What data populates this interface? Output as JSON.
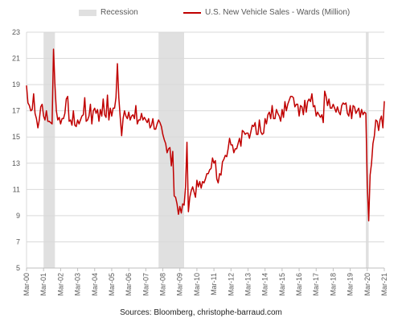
{
  "legend": {
    "recession_label": "Recession",
    "series_label": "U.S. New Vehicle Sales - Wards (Million)"
  },
  "source_text": "Sources: Bloomberg, christophe-barraud.com",
  "colors": {
    "series": "#c00000",
    "recession": "#e0e0e0",
    "grid": "#d9d9d9",
    "axis_text": "#595959"
  },
  "chart_data": {
    "type": "line",
    "ylim": [
      5,
      23
    ],
    "yticks": [
      5,
      7,
      9,
      11,
      13,
      15,
      17,
      19,
      21,
      23
    ],
    "xlim": [
      "2000-03",
      "2021-03"
    ],
    "xticks": [
      "Mar-00",
      "Mar-01",
      "Mar-02",
      "Mar-03",
      "Mar-04",
      "Mar-05",
      "Mar-06",
      "Mar-07",
      "Mar-08",
      "Mar-09",
      "Mar-10",
      "Mar-11",
      "Mar-12",
      "Mar-13",
      "Mar-14",
      "Mar-15",
      "Mar-16",
      "Mar-17",
      "Mar-18",
      "Mar-19",
      "Mar-20",
      "Mar-21"
    ],
    "grid": true,
    "legend_position": "top",
    "recessions": [
      [
        "2001-03",
        "2001-11"
      ],
      [
        "2007-12",
        "2009-06"
      ],
      [
        "2020-02",
        "2020-04"
      ]
    ],
    "series": [
      {
        "name": "U.S. New Vehicle Sales - Wards (Million)",
        "points": [
          [
            "2000-03",
            18.9
          ],
          [
            "2000-04",
            17.6
          ],
          [
            "2000-05",
            17.4
          ],
          [
            "2000-06",
            17.0
          ],
          [
            "2000-07",
            17.1
          ],
          [
            "2000-08",
            18.3
          ],
          [
            "2000-09",
            16.8
          ],
          [
            "2000-10",
            16.4
          ],
          [
            "2000-11",
            15.7
          ],
          [
            "2000-12",
            16.3
          ],
          [
            "2001-01",
            17.3
          ],
          [
            "2001-02",
            17.5
          ],
          [
            "2001-03",
            16.6
          ],
          [
            "2001-04",
            16.3
          ],
          [
            "2001-05",
            17.0
          ],
          [
            "2001-06",
            16.2
          ],
          [
            "2001-07",
            16.2
          ],
          [
            "2001-08",
            16.1
          ],
          [
            "2001-09",
            16.0
          ],
          [
            "2001-10",
            21.7
          ],
          [
            "2001-11",
            19.0
          ],
          [
            "2001-12",
            17.0
          ],
          [
            "2002-01",
            16.3
          ],
          [
            "2002-02",
            16.5
          ],
          [
            "2002-03",
            16.0
          ],
          [
            "2002-04",
            16.4
          ],
          [
            "2002-05",
            16.4
          ],
          [
            "2002-06",
            16.8
          ],
          [
            "2002-07",
            17.9
          ],
          [
            "2002-08",
            18.1
          ],
          [
            "2002-09",
            16.2
          ],
          [
            "2002-10",
            16.3
          ],
          [
            "2002-11",
            15.9
          ],
          [
            "2002-12",
            17.0
          ],
          [
            "2003-01",
            15.9
          ],
          [
            "2003-02",
            15.8
          ],
          [
            "2003-03",
            16.3
          ],
          [
            "2003-04",
            16.0
          ],
          [
            "2003-05",
            16.3
          ],
          [
            "2003-06",
            16.6
          ],
          [
            "2003-07",
            16.7
          ],
          [
            "2003-08",
            18.0
          ],
          [
            "2003-09",
            16.2
          ],
          [
            "2003-10",
            16.3
          ],
          [
            "2003-11",
            16.6
          ],
          [
            "2003-12",
            17.5
          ],
          [
            "2004-01",
            16.0
          ],
          [
            "2004-02",
            17.0
          ],
          [
            "2004-03",
            17.2
          ],
          [
            "2004-04",
            16.8
          ],
          [
            "2004-05",
            17.1
          ],
          [
            "2004-06",
            16.2
          ],
          [
            "2004-07",
            17.1
          ],
          [
            "2004-08",
            16.6
          ],
          [
            "2004-09",
            17.9
          ],
          [
            "2004-10",
            16.7
          ],
          [
            "2004-11",
            16.5
          ],
          [
            "2004-12",
            18.2
          ],
          [
            "2005-01",
            16.3
          ],
          [
            "2005-02",
            17.2
          ],
          [
            "2005-03",
            16.6
          ],
          [
            "2005-04",
            17.2
          ],
          [
            "2005-05",
            17.2
          ],
          [
            "2005-06",
            18.0
          ],
          [
            "2005-07",
            20.6
          ],
          [
            "2005-08",
            18.0
          ],
          [
            "2005-09",
            16.5
          ],
          [
            "2005-10",
            15.1
          ],
          [
            "2005-11",
            16.4
          ],
          [
            "2005-12",
            17.0
          ],
          [
            "2006-01",
            16.6
          ],
          [
            "2006-02",
            16.4
          ],
          [
            "2006-03",
            16.9
          ],
          [
            "2006-04",
            16.3
          ],
          [
            "2006-05",
            16.6
          ],
          [
            "2006-06",
            16.7
          ],
          [
            "2006-07",
            16.4
          ],
          [
            "2006-08",
            17.4
          ],
          [
            "2006-09",
            16.0
          ],
          [
            "2006-10",
            16.3
          ],
          [
            "2006-11",
            16.3
          ],
          [
            "2006-12",
            16.8
          ],
          [
            "2007-01",
            16.3
          ],
          [
            "2007-02",
            16.5
          ],
          [
            "2007-03",
            16.3
          ],
          [
            "2007-04",
            16.1
          ],
          [
            "2007-05",
            16.4
          ],
          [
            "2007-06",
            15.7
          ],
          [
            "2007-07",
            15.9
          ],
          [
            "2007-08",
            16.4
          ],
          [
            "2007-09",
            15.6
          ],
          [
            "2007-10",
            15.6
          ],
          [
            "2007-11",
            16.0
          ],
          [
            "2007-12",
            16.3
          ],
          [
            "2008-01",
            16.1
          ],
          [
            "2008-02",
            15.8
          ],
          [
            "2008-03",
            15.2
          ],
          [
            "2008-04",
            14.8
          ],
          [
            "2008-05",
            14.5
          ],
          [
            "2008-06",
            13.8
          ],
          [
            "2008-07",
            14.1
          ],
          [
            "2008-08",
            14.2
          ],
          [
            "2008-09",
            12.8
          ],
          [
            "2008-10",
            13.9
          ],
          [
            "2008-11",
            10.5
          ],
          [
            "2008-12",
            10.4
          ],
          [
            "2009-01",
            9.9
          ],
          [
            "2009-02",
            9.1
          ],
          [
            "2009-03",
            9.7
          ],
          [
            "2009-04",
            9.2
          ],
          [
            "2009-05",
            9.9
          ],
          [
            "2009-06",
            9.8
          ],
          [
            "2009-07",
            11.2
          ],
          [
            "2009-08",
            14.6
          ],
          [
            "2009-09",
            9.3
          ],
          [
            "2009-10",
            10.4
          ],
          [
            "2009-11",
            10.9
          ],
          [
            "2009-12",
            11.2
          ],
          [
            "2010-01",
            10.8
          ],
          [
            "2010-02",
            10.4
          ],
          [
            "2010-03",
            11.7
          ],
          [
            "2010-04",
            11.2
          ],
          [
            "2010-05",
            11.6
          ],
          [
            "2010-06",
            11.1
          ],
          [
            "2010-07",
            11.6
          ],
          [
            "2010-08",
            11.5
          ],
          [
            "2010-09",
            11.8
          ],
          [
            "2010-10",
            12.2
          ],
          [
            "2010-11",
            12.2
          ],
          [
            "2010-12",
            12.5
          ],
          [
            "2011-01",
            12.6
          ],
          [
            "2011-02",
            13.4
          ],
          [
            "2011-03",
            13.0
          ],
          [
            "2011-04",
            13.2
          ],
          [
            "2011-05",
            11.8
          ],
          [
            "2011-06",
            11.5
          ],
          [
            "2011-07",
            12.2
          ],
          [
            "2011-08",
            12.1
          ],
          [
            "2011-09",
            13.1
          ],
          [
            "2011-10",
            13.3
          ],
          [
            "2011-11",
            13.6
          ],
          [
            "2011-12",
            13.5
          ],
          [
            "2012-01",
            14.1
          ],
          [
            "2012-02",
            14.9
          ],
          [
            "2012-03",
            14.4
          ],
          [
            "2012-04",
            14.4
          ],
          [
            "2012-05",
            13.8
          ],
          [
            "2012-06",
            14.1
          ],
          [
            "2012-07",
            14.1
          ],
          [
            "2012-08",
            14.5
          ],
          [
            "2012-09",
            14.9
          ],
          [
            "2012-10",
            14.3
          ],
          [
            "2012-11",
            15.5
          ],
          [
            "2012-12",
            15.4
          ],
          [
            "2013-01",
            15.2
          ],
          [
            "2013-02",
            15.3
          ],
          [
            "2013-03",
            15.3
          ],
          [
            "2013-04",
            14.9
          ],
          [
            "2013-05",
            15.4
          ],
          [
            "2013-06",
            15.9
          ],
          [
            "2013-07",
            15.8
          ],
          [
            "2013-08",
            16.1
          ],
          [
            "2013-09",
            15.2
          ],
          [
            "2013-10",
            15.2
          ],
          [
            "2013-11",
            16.3
          ],
          [
            "2013-12",
            15.4
          ],
          [
            "2014-01",
            15.2
          ],
          [
            "2014-02",
            15.3
          ],
          [
            "2014-03",
            16.4
          ],
          [
            "2014-04",
            16.0
          ],
          [
            "2014-05",
            16.7
          ],
          [
            "2014-06",
            16.9
          ],
          [
            "2014-07",
            16.4
          ],
          [
            "2014-08",
            17.4
          ],
          [
            "2014-09",
            16.4
          ],
          [
            "2014-10",
            16.4
          ],
          [
            "2014-11",
            17.1
          ],
          [
            "2014-12",
            16.8
          ],
          [
            "2015-01",
            16.6
          ],
          [
            "2015-02",
            16.2
          ],
          [
            "2015-03",
            17.1
          ],
          [
            "2015-04",
            16.5
          ],
          [
            "2015-05",
            17.7
          ],
          [
            "2015-06",
            17.0
          ],
          [
            "2015-07",
            17.5
          ],
          [
            "2015-08",
            17.8
          ],
          [
            "2015-09",
            18.1
          ],
          [
            "2015-10",
            18.1
          ],
          [
            "2015-11",
            18.0
          ],
          [
            "2015-12",
            17.3
          ],
          [
            "2016-01",
            17.5
          ],
          [
            "2016-02",
            17.5
          ],
          [
            "2016-03",
            16.6
          ],
          [
            "2016-04",
            17.4
          ],
          [
            "2016-05",
            17.3
          ],
          [
            "2016-06",
            16.7
          ],
          [
            "2016-07",
            17.8
          ],
          [
            "2016-08",
            16.9
          ],
          [
            "2016-09",
            17.7
          ],
          [
            "2016-10",
            17.9
          ],
          [
            "2016-11",
            17.7
          ],
          [
            "2016-12",
            18.3
          ],
          [
            "2017-01",
            17.3
          ],
          [
            "2017-02",
            17.4
          ],
          [
            "2017-03",
            16.6
          ],
          [
            "2017-04",
            16.9
          ],
          [
            "2017-05",
            16.7
          ],
          [
            "2017-06",
            16.5
          ],
          [
            "2017-07",
            16.7
          ],
          [
            "2017-08",
            16.1
          ],
          [
            "2017-09",
            18.5
          ],
          [
            "2017-10",
            18.1
          ],
          [
            "2017-11",
            17.4
          ],
          [
            "2017-12",
            17.9
          ],
          [
            "2018-01",
            17.2
          ],
          [
            "2018-02",
            17.2
          ],
          [
            "2018-03",
            17.5
          ],
          [
            "2018-04",
            17.2
          ],
          [
            "2018-05",
            16.9
          ],
          [
            "2018-06",
            17.3
          ],
          [
            "2018-07",
            16.9
          ],
          [
            "2018-08",
            16.7
          ],
          [
            "2018-09",
            17.4
          ],
          [
            "2018-10",
            17.6
          ],
          [
            "2018-11",
            17.5
          ],
          [
            "2018-12",
            17.6
          ],
          [
            "2019-01",
            16.8
          ],
          [
            "2019-02",
            16.6
          ],
          [
            "2019-03",
            17.4
          ],
          [
            "2019-04",
            16.4
          ],
          [
            "2019-05",
            17.4
          ],
          [
            "2019-06",
            17.3
          ],
          [
            "2019-07",
            16.8
          ],
          [
            "2019-08",
            17.0
          ],
          [
            "2019-09",
            17.2
          ],
          [
            "2019-10",
            16.5
          ],
          [
            "2019-11",
            17.1
          ],
          [
            "2019-12",
            16.7
          ],
          [
            "2020-01",
            16.9
          ],
          [
            "2020-02",
            16.8
          ],
          [
            "2020-03",
            11.4
          ],
          [
            "2020-04",
            8.6
          ],
          [
            "2020-05",
            12.1
          ],
          [
            "2020-06",
            13.0
          ],
          [
            "2020-07",
            14.5
          ],
          [
            "2020-08",
            15.1
          ],
          [
            "2020-09",
            16.3
          ],
          [
            "2020-10",
            16.2
          ],
          [
            "2020-11",
            15.5
          ],
          [
            "2020-12",
            16.3
          ],
          [
            "2021-01",
            16.6
          ],
          [
            "2021-02",
            15.7
          ],
          [
            "2021-03",
            17.7
          ]
        ]
      }
    ]
  }
}
